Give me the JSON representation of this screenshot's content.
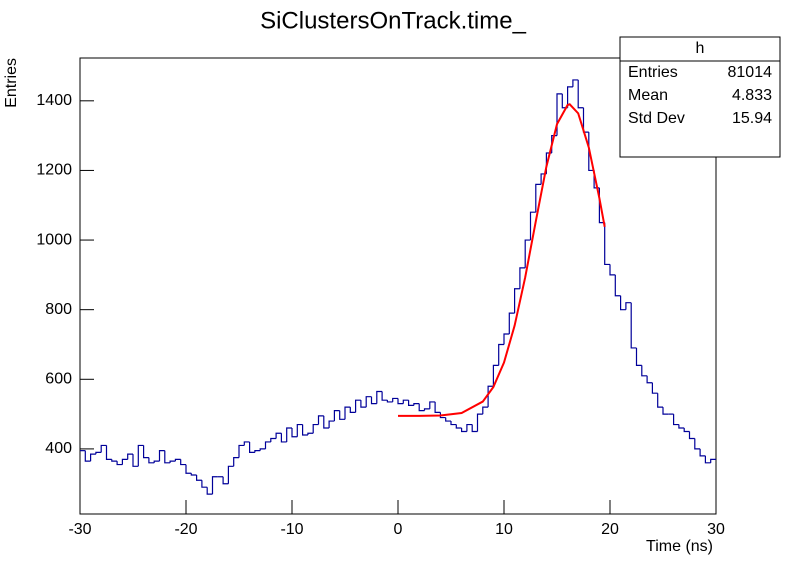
{
  "chart_data": {
    "type": "histogram",
    "title": "SiClustersOnTrack.time_",
    "x_label": "Time (ns)",
    "y_label": "Entries",
    "color": "#000099",
    "bins": [
      -30,
      -29.5,
      -29,
      -28.5,
      -28,
      -27.5,
      -27,
      -26.5,
      -26,
      -25.5,
      -25,
      -24.5,
      -24,
      -23.5,
      -23,
      -22.5,
      -22,
      -21.5,
      -21,
      -20.5,
      -20,
      -19.5,
      -19,
      -18.5,
      -18,
      -17.5,
      -17,
      -16.5,
      -16,
      -15.5,
      -15,
      -14.5,
      -14,
      -13.5,
      -13,
      -12.5,
      -12,
      -11.5,
      -11,
      -10.5,
      -10,
      -9.5,
      -9,
      -8.5,
      -8,
      -7.5,
      -7,
      -6.5,
      -6,
      -5.5,
      -5,
      -4.5,
      -4,
      -3.5,
      -3,
      -2.5,
      -2,
      -1.5,
      -1,
      -0.5,
      0,
      0.5,
      1,
      1.5,
      2,
      2.5,
      3,
      3.5,
      4,
      4.5,
      5,
      5.5,
      6,
      6.5,
      7,
      7.5,
      8,
      8.5,
      9,
      9.5,
      10,
      10.5,
      11,
      11.5,
      12,
      12.5,
      13,
      13.5,
      14,
      14.5,
      15,
      15.5,
      16,
      16.5,
      17,
      17.5,
      18,
      18.5,
      19,
      19.5,
      20,
      20.5,
      21,
      21.5,
      22,
      22.5,
      23,
      23.5,
      24,
      24.5,
      25,
      25.5,
      26,
      26.5,
      27,
      27.5,
      28,
      28.5,
      29,
      29.5,
      30
    ],
    "values": [
      395,
      365,
      385,
      390,
      410,
      370,
      365,
      355,
      370,
      385,
      350,
      410,
      375,
      360,
      365,
      395,
      360,
      365,
      370,
      355,
      330,
      325,
      310,
      290,
      270,
      320,
      320,
      300,
      350,
      375,
      410,
      420,
      390,
      395,
      400,
      420,
      430,
      445,
      420,
      460,
      435,
      470,
      440,
      445,
      470,
      495,
      460,
      480,
      510,
      485,
      520,
      505,
      540,
      520,
      550,
      530,
      565,
      540,
      535,
      545,
      530,
      540,
      525,
      530,
      510,
      515,
      535,
      505,
      490,
      480,
      470,
      460,
      450,
      470,
      450,
      500,
      520,
      580,
      640,
      700,
      730,
      790,
      860,
      920,
      1000,
      1080,
      1160,
      1190,
      1250,
      1300,
      1420,
      1380,
      1440,
      1460,
      1380,
      1310,
      1200,
      1150,
      1050,
      930,
      900,
      840,
      800,
      820,
      690,
      640,
      610,
      590,
      560,
      520,
      500,
      500,
      470,
      460,
      450,
      430,
      400,
      380,
      360,
      370
    ],
    "fit": {
      "color": "#ff0000",
      "x": [
        0,
        2,
        4,
        6,
        8,
        9,
        10,
        11,
        12,
        13,
        14,
        15,
        16,
        16.2,
        17,
        18,
        19,
        19.5
      ],
      "values": [
        495,
        495,
        496,
        503,
        536,
        578,
        648,
        754,
        893,
        1054,
        1211,
        1333,
        1388,
        1390,
        1364,
        1266,
        1120,
        1038
      ]
    },
    "xlim": [
      -30,
      30
    ],
    "xticks": [
      -30,
      -20,
      -10,
      0,
      10,
      20,
      30
    ],
    "ylim": [
      213,
      1523
    ],
    "yticks": [
      400,
      600,
      800,
      1000,
      1200,
      1400
    ],
    "stats": {
      "title": "h",
      "rows": [
        [
          "Entries",
          "81014"
        ],
        [
          "Mean",
          "4.833"
        ],
        [
          "Std Dev",
          "15.94"
        ]
      ]
    }
  }
}
